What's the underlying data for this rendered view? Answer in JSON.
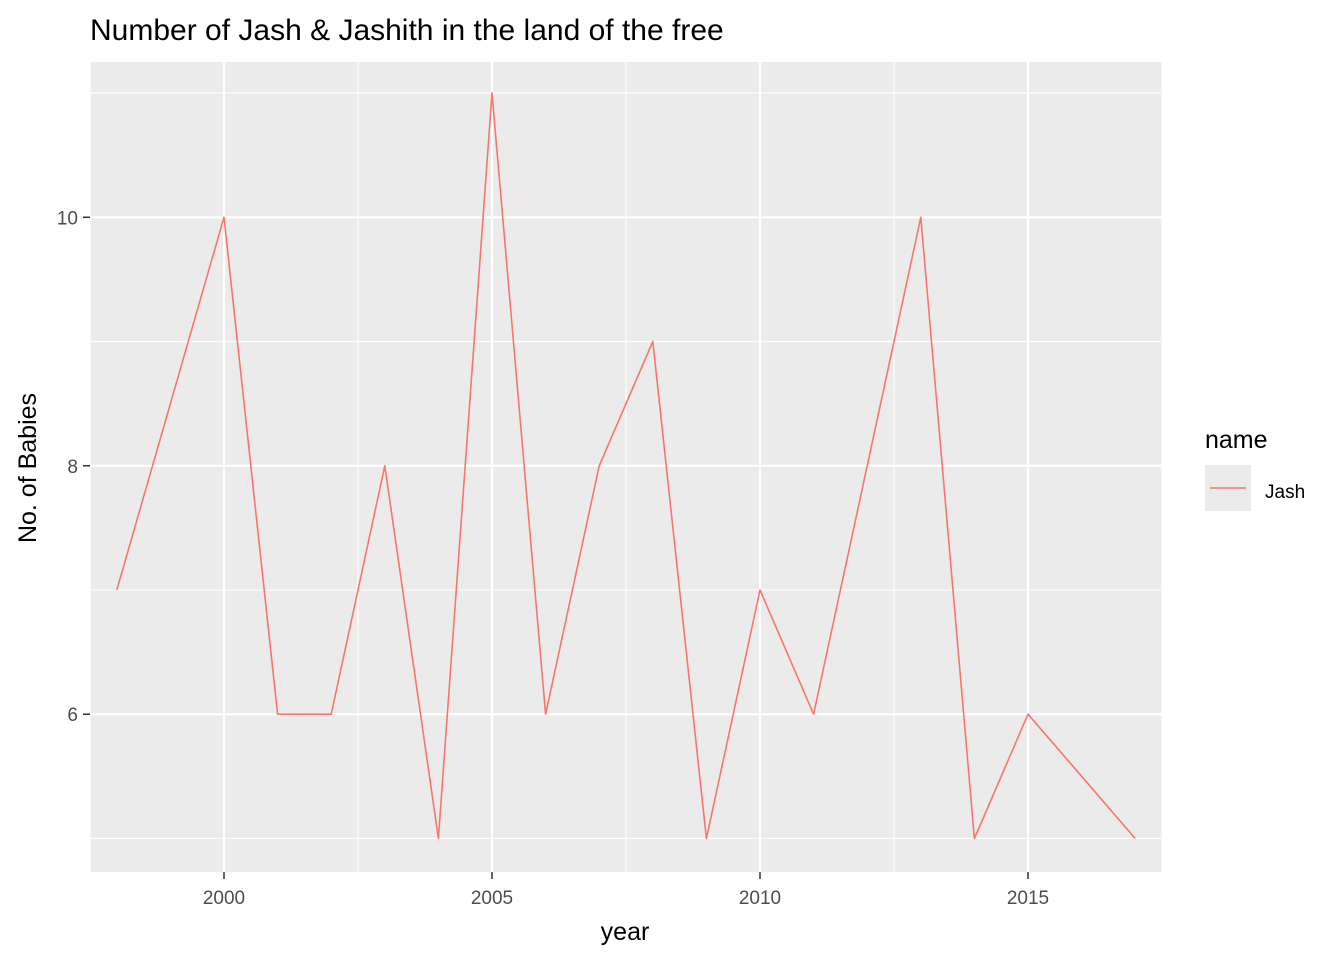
{
  "chart_data": {
    "type": "line",
    "title": "Number of Jash & Jashith in the land of the free",
    "xlabel": "year",
    "ylabel": "No. of Babies",
    "xlim": [
      1997.5,
      2017.5
    ],
    "ylim": [
      4.73,
      11.25
    ],
    "x_ticks": [
      2000,
      2005,
      2010,
      2015
    ],
    "x_tick_labels": [
      "2000",
      "2005",
      "2010",
      "2015"
    ],
    "y_ticks": [
      6,
      8,
      10
    ],
    "y_tick_labels": [
      "6",
      "8",
      "10"
    ],
    "grid": true,
    "legend": {
      "title": "name",
      "position": "right"
    },
    "series": [
      {
        "name": "Jash",
        "color": "#F8766D",
        "x": [
          1998,
          1999,
          2000,
          2001,
          2002,
          2003,
          2004,
          2005,
          2006,
          2007,
          2008,
          2009,
          2010,
          2011,
          2012,
          2013,
          2014,
          2015,
          2016,
          2017
        ],
        "values": [
          7,
          8.5,
          10,
          6,
          6,
          8,
          5,
          11,
          6,
          8,
          9,
          5,
          7,
          6,
          8,
          10,
          5,
          6,
          5.5,
          5
        ]
      }
    ],
    "panel_background": "#EBEBEB",
    "grid_color": "#FFFFFF"
  }
}
